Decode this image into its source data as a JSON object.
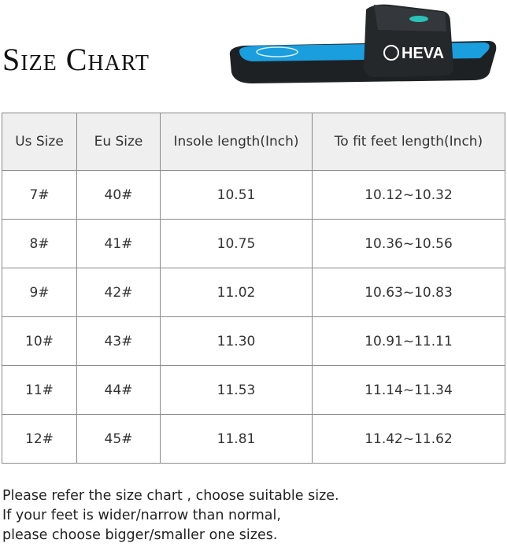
{
  "title": "Size Chart",
  "product": {
    "brand_logo_text": "HEVA",
    "colors": {
      "sole": "#1e2124",
      "insole": "#1a9ede"
    }
  },
  "table": {
    "headers": [
      "Us Size",
      "Eu Size",
      "Insole length(Inch)",
      "To fit feet length(Inch)"
    ],
    "rows": [
      [
        "7#",
        "40#",
        "10.51",
        "10.12~10.32"
      ],
      [
        "8#",
        "41#",
        "10.75",
        "10.36~10.56"
      ],
      [
        "9#",
        "42#",
        "11.02",
        "10.63~10.83"
      ],
      [
        "10#",
        "43#",
        "11.30",
        "10.91~11.11"
      ],
      [
        "11#",
        "44#",
        "11.53",
        "11.14~11.34"
      ],
      [
        "12#",
        "45#",
        "11.81",
        "11.42~11.62"
      ]
    ]
  },
  "notes": [
    "Please refer the size chart , choose suitable size.",
    "If your feet is wider/narrow than normal,",
    "please choose bigger/smaller one sizes."
  ]
}
